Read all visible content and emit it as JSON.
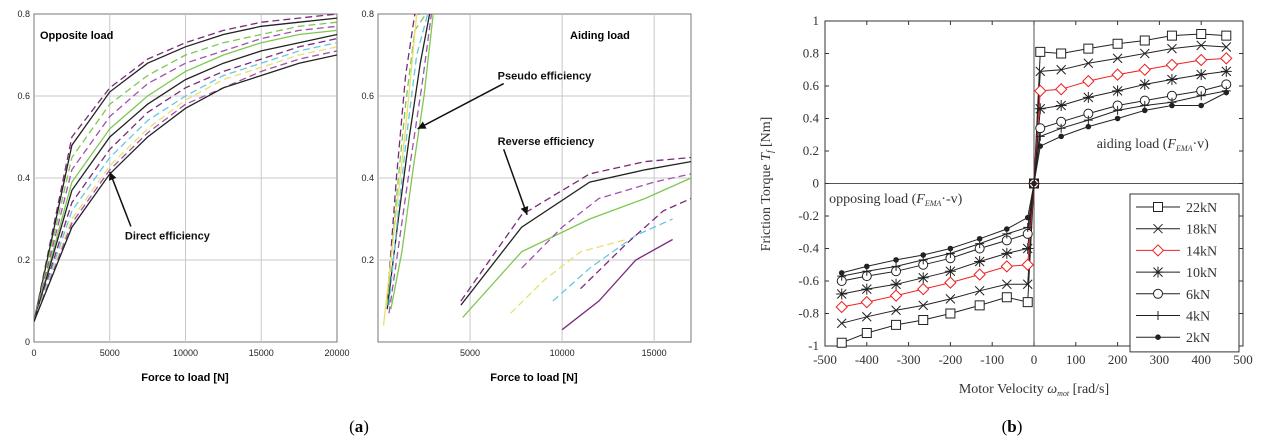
{
  "figure": {
    "panel_a_label": "(a)",
    "panel_a_letter": "a",
    "panel_b_label": "(b)",
    "panel_b_letter": "b"
  },
  "chart_data": [
    {
      "id": "a1",
      "type": "line",
      "title": "Opposite load",
      "xlabel": "Force to load [N]",
      "ylabel": "",
      "xlim": [
        0,
        20000
      ],
      "ylim": [
        0,
        0.8
      ],
      "x_ticks": [
        0,
        5000,
        10000,
        15000,
        20000
      ],
      "y_ticks": [
        0,
        0.2,
        0.4,
        0.6,
        0.8
      ],
      "x_tick_labels": [
        "0",
        "5000",
        "10000",
        "15000",
        "20000"
      ],
      "y_tick_labels": [
        "0",
        "0.2",
        "0.4",
        "0.6",
        "0.8"
      ],
      "grid": true,
      "annotations": [
        {
          "text": "Direct efficiency",
          "x": 6000,
          "y": 0.25,
          "arrow_to": [
            5000,
            0.415
          ]
        }
      ],
      "series": [
        {
          "color": "#7a2a7a",
          "dash": "7,4",
          "x": [
            0,
            2500,
            5000,
            7500,
            10000,
            12500,
            15000,
            17500,
            20000
          ],
          "y": [
            0.05,
            0.5,
            0.62,
            0.69,
            0.73,
            0.76,
            0.78,
            0.79,
            0.8
          ]
        },
        {
          "color": "#222222",
          "dash": "",
          "x": [
            0,
            2500,
            5000,
            7500,
            10000,
            12500,
            15000,
            17500,
            20000
          ],
          "y": [
            0.05,
            0.48,
            0.61,
            0.68,
            0.72,
            0.75,
            0.77,
            0.78,
            0.79
          ]
        },
        {
          "color": "#7ec850",
          "dash": "7,4",
          "x": [
            0,
            2500,
            5000,
            7500,
            10000,
            12500,
            15000,
            17500,
            20000
          ],
          "y": [
            0.05,
            0.45,
            0.58,
            0.65,
            0.7,
            0.73,
            0.75,
            0.77,
            0.78
          ]
        },
        {
          "color": "#a050b0",
          "dash": "7,4",
          "x": [
            0,
            2500,
            5000,
            7500,
            10000,
            12500,
            15000,
            17500,
            20000
          ],
          "y": [
            0.05,
            0.42,
            0.55,
            0.63,
            0.68,
            0.71,
            0.74,
            0.76,
            0.77
          ]
        },
        {
          "color": "#7ec850",
          "dash": "",
          "x": [
            0,
            2500,
            5000,
            7500,
            10000,
            12500,
            15000,
            17500,
            20000
          ],
          "y": [
            0.05,
            0.39,
            0.52,
            0.6,
            0.66,
            0.7,
            0.73,
            0.75,
            0.76
          ]
        },
        {
          "color": "#222222",
          "dash": "",
          "x": [
            0,
            2500,
            5000,
            7500,
            10000,
            12500,
            15000,
            17500,
            20000
          ],
          "y": [
            0.05,
            0.37,
            0.5,
            0.58,
            0.64,
            0.68,
            0.71,
            0.73,
            0.75
          ]
        },
        {
          "color": "#7a2a7a",
          "dash": "7,4",
          "x": [
            0,
            2500,
            5000,
            7500,
            10000,
            12500,
            15000,
            17500,
            20000
          ],
          "y": [
            0.05,
            0.34,
            0.47,
            0.56,
            0.62,
            0.66,
            0.69,
            0.72,
            0.74
          ]
        },
        {
          "color": "#66c8e0",
          "dash": "7,4",
          "x": [
            0,
            2500,
            5000,
            7500,
            10000,
            12500,
            15000,
            17500,
            20000
          ],
          "y": [
            0.05,
            0.32,
            0.45,
            0.54,
            0.6,
            0.65,
            0.68,
            0.71,
            0.73
          ]
        },
        {
          "color": "#e8e070",
          "dash": "7,4",
          "x": [
            0,
            2500,
            5000,
            7500,
            10000,
            12500,
            15000,
            17500,
            20000
          ],
          "y": [
            0.05,
            0.3,
            0.43,
            0.52,
            0.59,
            0.64,
            0.67,
            0.7,
            0.72
          ]
        },
        {
          "color": "#a050b0",
          "dash": "7,4",
          "x": [
            0,
            2500,
            5000,
            7500,
            10000,
            12500,
            15000,
            17500,
            20000
          ],
          "y": [
            0.05,
            0.29,
            0.42,
            0.51,
            0.58,
            0.62,
            0.66,
            0.69,
            0.71
          ]
        },
        {
          "color": "#222222",
          "dash": "",
          "x": [
            0,
            2500,
            5000,
            7500,
            10000,
            12500,
            15000,
            17500,
            20000
          ],
          "y": [
            0.05,
            0.28,
            0.41,
            0.5,
            0.57,
            0.62,
            0.65,
            0.68,
            0.7
          ]
        }
      ]
    },
    {
      "id": "a2",
      "type": "line",
      "title": "Aiding load",
      "xlabel": "Force to load [N]",
      "ylabel": "",
      "xlim": [
        0,
        17000
      ],
      "ylim": [
        0,
        0.8
      ],
      "x_ticks": [
        5000,
        10000,
        15000
      ],
      "y_ticks": [
        0.2,
        0.4,
        0.6,
        0.8
      ],
      "x_tick_labels": [
        "5000",
        "10000",
        "15000"
      ],
      "y_tick_labels": [
        "0.2",
        "0.4",
        "0.6",
        "0.8"
      ],
      "grid": true,
      "annotations": [
        {
          "text": "Pseudo efficiency",
          "x": 6500,
          "y": 0.64,
          "arrow_to": [
            2150,
            0.52
          ]
        },
        {
          "text": "Reverse efficiency",
          "x": 6500,
          "y": 0.48,
          "arrow_to": [
            8100,
            0.31
          ]
        }
      ],
      "series": [
        {
          "color": "#7a2a7a",
          "dash": "7,4",
          "x": [
            500,
            1000,
            1500,
            2000,
            2400
          ],
          "y": [
            0.1,
            0.4,
            0.65,
            0.8,
            0.8
          ]
        },
        {
          "color": "#222222",
          "dash": "",
          "x": [
            500,
            1100,
            1700,
            2300,
            2800
          ],
          "y": [
            0.08,
            0.3,
            0.5,
            0.68,
            0.8
          ]
        },
        {
          "color": "#7ec850",
          "dash": "7,4",
          "x": [
            500,
            1000,
            1500,
            2000,
            2600
          ],
          "y": [
            0.09,
            0.35,
            0.58,
            0.76,
            0.8
          ]
        },
        {
          "color": "#a050b0",
          "dash": "7,4",
          "x": [
            600,
            1200,
            1800,
            2400,
            2900
          ],
          "y": [
            0.07,
            0.26,
            0.45,
            0.63,
            0.8
          ]
        },
        {
          "color": "#7ec850",
          "dash": "",
          "x": [
            700,
            1300,
            1900,
            2500,
            3000
          ],
          "y": [
            0.08,
            0.22,
            0.42,
            0.6,
            0.8
          ]
        },
        {
          "color": "#66c8e0",
          "dash": "7,4",
          "x": [
            600,
            1100,
            1600,
            2100,
            2700
          ],
          "y": [
            0.09,
            0.32,
            0.52,
            0.7,
            0.8
          ]
        },
        {
          "color": "#e8e070",
          "dash": "",
          "x": [
            300,
            900,
            1500,
            2100
          ],
          "y": [
            0.04,
            0.28,
            0.52,
            0.8
          ]
        },
        {
          "color": "#222222",
          "dash": "",
          "x": [
            4500,
            7800,
            11500,
            14500,
            17000
          ],
          "y": [
            0.09,
            0.28,
            0.39,
            0.42,
            0.44
          ]
        },
        {
          "color": "#7a2a7a",
          "dash": "7,4",
          "x": [
            4500,
            7800,
            11500,
            14500,
            17000
          ],
          "y": [
            0.1,
            0.31,
            0.41,
            0.44,
            0.45
          ]
        },
        {
          "color": "#7ec850",
          "dash": "",
          "x": [
            4600,
            7800,
            11500,
            14500,
            17000
          ],
          "y": [
            0.06,
            0.22,
            0.3,
            0.35,
            0.4
          ]
        },
        {
          "color": "#a050b0",
          "dash": "7,4",
          "x": [
            7800,
            10000,
            12000,
            15000,
            17000
          ],
          "y": [
            0.18,
            0.28,
            0.35,
            0.39,
            0.41
          ]
        },
        {
          "color": "#e8e070",
          "dash": "7,4",
          "x": [
            7200,
            9000,
            11000,
            13500
          ],
          "y": [
            0.07,
            0.15,
            0.22,
            0.25
          ]
        },
        {
          "color": "#66c8e0",
          "dash": "7,4",
          "x": [
            9500,
            11500,
            14000,
            16000
          ],
          "y": [
            0.1,
            0.18,
            0.26,
            0.3
          ]
        },
        {
          "color": "#7a2a7a",
          "dash": "",
          "x": [
            10000,
            12000,
            14000,
            16000
          ],
          "y": [
            0.03,
            0.1,
            0.2,
            0.25
          ]
        },
        {
          "color": "#7a2a7a",
          "dash": "7,4",
          "x": [
            11000,
            13500,
            15500,
            17000
          ],
          "y": [
            0.13,
            0.24,
            0.32,
            0.35
          ]
        }
      ]
    },
    {
      "id": "b",
      "type": "line",
      "title": "",
      "xlabel_prefix": "Motor Velocity ",
      "xlabel_symbol": "ω",
      "xlabel_sub": "mot",
      "xlabel_unit": " [rad/s]",
      "ylabel_prefix": "Friction Torque ",
      "ylabel_symbol": "T",
      "ylabel_sub": "f",
      "ylabel_unit": " [Nm]",
      "xlim": [
        -500,
        500
      ],
      "ylim": [
        -1,
        1
      ],
      "x_ticks": [
        -500,
        -400,
        -300,
        -200,
        -100,
        0,
        100,
        200,
        300,
        400,
        500
      ],
      "y_ticks": [
        -1,
        -0.8,
        -0.6,
        -0.4,
        -0.2,
        0,
        0.2,
        0.4,
        0.6,
        0.8,
        1
      ],
      "x_tick_labels": [
        "-500",
        "-400",
        "-300",
        "-200",
        "-100",
        "0",
        "100",
        "200",
        "300",
        "400",
        "500"
      ],
      "y_tick_labels": [
        "-1",
        "-0.8",
        "-0.6",
        "-0.4",
        "-0.2",
        "0",
        "0.2",
        "0.4",
        "0.6",
        "0.8",
        "1"
      ],
      "grid": false,
      "legend_position": "bottom-right",
      "annotations": [
        {
          "text_prefix": "aiding load (",
          "symbol": "F",
          "sub": "EMA",
          "text_suffix": "·v)",
          "x": 150,
          "y": 0.22
        },
        {
          "text_prefix": "opposing load (",
          "symbol": "F",
          "sub": "EMA",
          "text_suffix": "·-v)",
          "x": -490,
          "y": -0.12
        }
      ],
      "x": [
        -460,
        -400,
        -330,
        -265,
        -200,
        -130,
        -65,
        -15,
        0,
        15,
        65,
        130,
        200,
        265,
        330,
        400,
        460
      ],
      "series": [
        {
          "name": "22kN",
          "marker": "square",
          "color": "#222222",
          "y": [
            -0.98,
            -0.92,
            -0.87,
            -0.84,
            -0.8,
            -0.75,
            -0.7,
            -0.73,
            0,
            0.81,
            0.8,
            0.83,
            0.86,
            0.88,
            0.91,
            0.92,
            0.91
          ]
        },
        {
          "name": "18kN",
          "marker": "x",
          "color": "#222222",
          "y": [
            -0.86,
            -0.82,
            -0.78,
            -0.75,
            -0.71,
            -0.66,
            -0.62,
            -0.62,
            0,
            0.69,
            0.7,
            0.74,
            0.77,
            0.8,
            0.83,
            0.85,
            0.84
          ]
        },
        {
          "name": "14kN",
          "marker": "diamond",
          "color": "#ee2222",
          "y": [
            -0.76,
            -0.73,
            -0.69,
            -0.65,
            -0.61,
            -0.56,
            -0.51,
            -0.5,
            0,
            0.57,
            0.58,
            0.63,
            0.67,
            0.7,
            0.73,
            0.76,
            0.77
          ]
        },
        {
          "name": "10kN",
          "marker": "star",
          "color": "#222222",
          "y": [
            -0.68,
            -0.65,
            -0.62,
            -0.58,
            -0.54,
            -0.48,
            -0.43,
            -0.4,
            0,
            0.46,
            0.48,
            0.53,
            0.57,
            0.61,
            0.64,
            0.67,
            0.69
          ]
        },
        {
          "name": "6kN",
          "marker": "circle",
          "color": "#222222",
          "y": [
            -0.6,
            -0.57,
            -0.54,
            -0.5,
            -0.46,
            -0.4,
            -0.35,
            -0.31,
            0,
            0.34,
            0.38,
            0.43,
            0.48,
            0.51,
            0.54,
            0.57,
            0.61
          ]
        },
        {
          "name": "4kN",
          "marker": "plus",
          "color": "#222222",
          "y": [
            -0.57,
            -0.54,
            -0.51,
            -0.47,
            -0.43,
            -0.37,
            -0.31,
            -0.27,
            0,
            0.29,
            0.34,
            0.39,
            0.45,
            0.48,
            0.5,
            0.54,
            0.57
          ]
        },
        {
          "name": "2kN",
          "marker": "dot",
          "color": "#222222",
          "y": [
            -0.55,
            -0.51,
            -0.47,
            -0.44,
            -0.4,
            -0.34,
            -0.28,
            -0.21,
            0,
            0.23,
            0.29,
            0.35,
            0.4,
            0.45,
            0.48,
            0.48,
            0.56
          ]
        }
      ]
    }
  ]
}
